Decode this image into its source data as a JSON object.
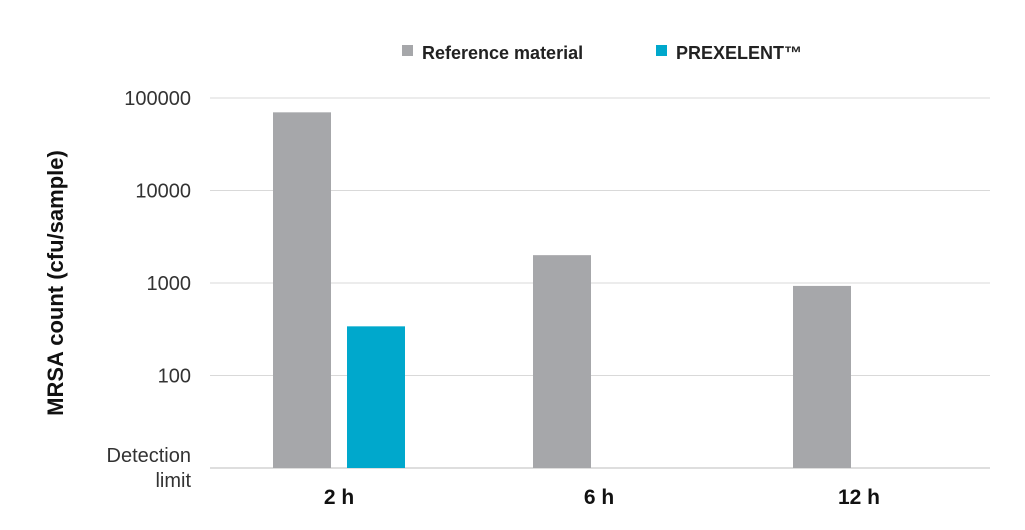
{
  "chart_data": {
    "type": "bar",
    "categories": [
      "2 h",
      "6 h",
      "12 h"
    ],
    "series": [
      {
        "name": "Reference material",
        "color": "#a6a7aa",
        "values": [
          70000,
          2000,
          930
        ]
      },
      {
        "name": "PREXELENT™",
        "color": "#00a8cc",
        "values": [
          340,
          null,
          null
        ]
      }
    ],
    "ylabel": "MRSA count (cfu/sample)",
    "xlabel": "",
    "yscale": "log",
    "ylim": [
      10,
      100000
    ],
    "yticks": [
      {
        "value": 10,
        "label": "Detection limit"
      },
      {
        "value": 100,
        "label": "100"
      },
      {
        "value": 1000,
        "label": "1000"
      },
      {
        "value": 10000,
        "label": "10000"
      },
      {
        "value": 100000,
        "label": "100000"
      }
    ],
    "grid": true,
    "legend_position": "top-center"
  }
}
